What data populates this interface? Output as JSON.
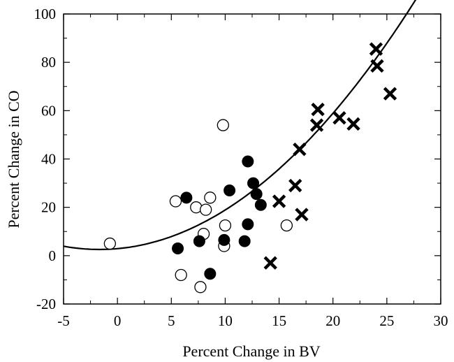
{
  "chart_data": {
    "type": "scatter",
    "xlabel": "Percent Change in BV",
    "ylabel": "Percent Change in CO",
    "xlim": [
      -5,
      30
    ],
    "ylim": [
      -20,
      100
    ],
    "x_ticks": [
      -5,
      0,
      5,
      10,
      15,
      20,
      25,
      30
    ],
    "y_ticks": [
      -20,
      0,
      20,
      40,
      60,
      80,
      100
    ],
    "x_tick_labels": [
      "-5",
      "0",
      "5",
      "10",
      "15",
      "20",
      "25",
      "30"
    ],
    "y_tick_labels": [
      "-20",
      "0",
      "20",
      "40",
      "60",
      "80",
      "100"
    ],
    "grid": false,
    "legend": "none",
    "series": [
      {
        "marker": "open-circle",
        "color": "#000000",
        "points": [
          [
            -0.7,
            5
          ],
          [
            5.4,
            22.5
          ],
          [
            5.9,
            -8
          ],
          [
            7.3,
            20
          ],
          [
            7.7,
            -13
          ],
          [
            8.0,
            9
          ],
          [
            8.2,
            19
          ],
          [
            8.6,
            24
          ],
          [
            9.8,
            54
          ],
          [
            9.9,
            4
          ],
          [
            10.0,
            12.5
          ],
          [
            15.7,
            12.5
          ]
        ]
      },
      {
        "marker": "filled-circle",
        "color": "#000000",
        "points": [
          [
            5.6,
            3
          ],
          [
            6.4,
            24
          ],
          [
            7.6,
            6
          ],
          [
            8.6,
            -7.5
          ],
          [
            9.9,
            6.5
          ],
          [
            10.4,
            27
          ],
          [
            11.8,
            6
          ],
          [
            12.1,
            39
          ],
          [
            12.1,
            13
          ],
          [
            12.6,
            30
          ],
          [
            12.9,
            25.5
          ],
          [
            13.3,
            21
          ]
        ]
      },
      {
        "marker": "x-cross",
        "color": "#000000",
        "points": [
          [
            14.2,
            -3
          ],
          [
            15.0,
            22.5
          ],
          [
            16.5,
            29
          ],
          [
            16.9,
            44
          ],
          [
            17.1,
            17
          ],
          [
            18.5,
            54
          ],
          [
            18.6,
            60.5
          ],
          [
            20.6,
            57
          ],
          [
            21.9,
            54.5
          ],
          [
            24.0,
            85.5
          ],
          [
            24.1,
            78.5
          ],
          [
            25.3,
            67
          ]
        ]
      }
    ],
    "curve": {
      "type": "quadratic-fit",
      "x_range": [
        -5,
        28.3
      ],
      "coefficients": {
        "a": 0.12,
        "b": 0.4,
        "c": 2.9
      }
    }
  }
}
